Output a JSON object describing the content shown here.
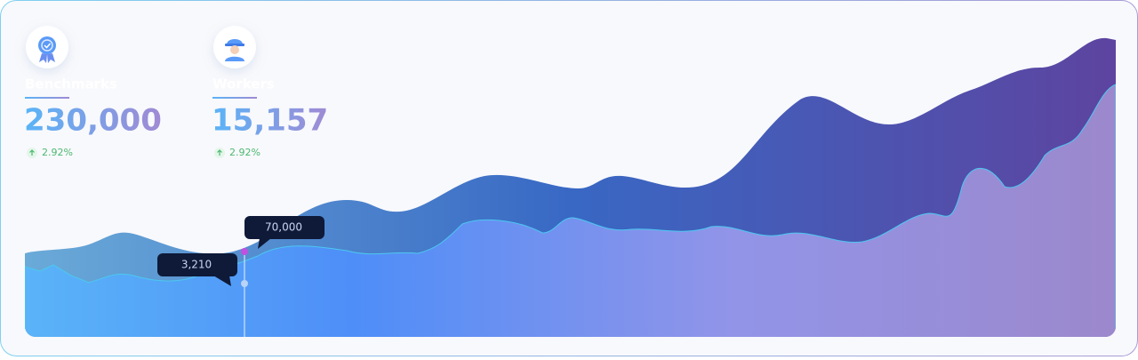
{
  "stats": [
    {
      "label": "Benchmarks",
      "value": "230,000",
      "change": "2.92%"
    },
    {
      "label": "Workers",
      "value": "15,157",
      "change": "2.92%"
    }
  ],
  "tooltips": [
    "70,000",
    "3,210"
  ]
}
